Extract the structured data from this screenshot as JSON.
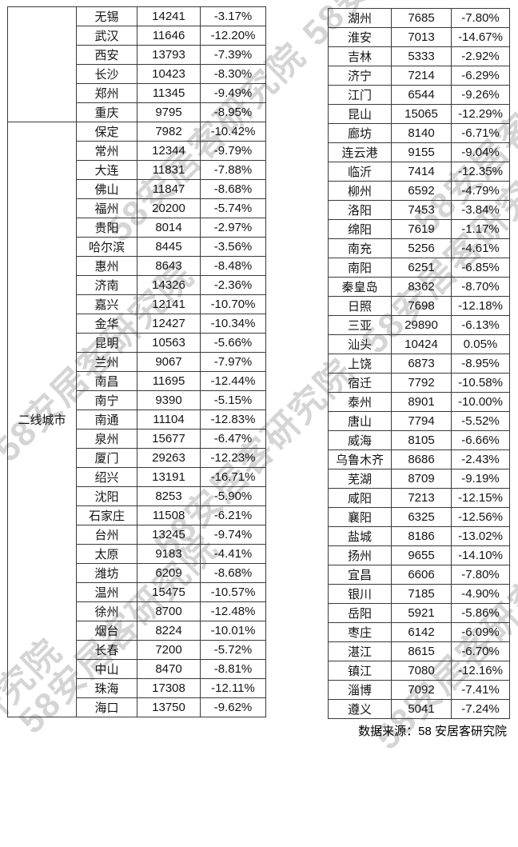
{
  "watermark": {
    "text": "58安居客研究院"
  },
  "footer": {
    "source_label": "数据来源：58 安居客研究院"
  },
  "table": {
    "left": {
      "groups": [
        {
          "label": "",
          "rows": [
            [
              "无锡",
              "14241",
              "-3.17%"
            ],
            [
              "武汉",
              "11646",
              "-12.20%"
            ],
            [
              "西安",
              "13793",
              "-7.39%"
            ],
            [
              "长沙",
              "10423",
              "-8.30%"
            ],
            [
              "郑州",
              "11345",
              "-9.49%"
            ],
            [
              "重庆",
              "9795",
              "-8.95%"
            ]
          ]
        },
        {
          "label": "二线城市",
          "rows": [
            [
              "保定",
              "7982",
              "-10.42%"
            ],
            [
              "常州",
              "12344",
              "-9.79%"
            ],
            [
              "大连",
              "11831",
              "-7.88%"
            ],
            [
              "佛山",
              "11847",
              "-8.68%"
            ],
            [
              "福州",
              "20200",
              "-5.74%"
            ],
            [
              "贵阳",
              "8014",
              "-2.97%"
            ],
            [
              "哈尔滨",
              "8445",
              "-3.56%"
            ],
            [
              "惠州",
              "8643",
              "-8.48%"
            ],
            [
              "济南",
              "14326",
              "-2.36%"
            ],
            [
              "嘉兴",
              "12141",
              "-10.70%"
            ],
            [
              "金华",
              "12427",
              "-10.34%"
            ],
            [
              "昆明",
              "10563",
              "-5.66%"
            ],
            [
              "兰州",
              "9067",
              "-7.97%"
            ],
            [
              "南昌",
              "11695",
              "-12.44%"
            ],
            [
              "南宁",
              "9390",
              "-5.15%"
            ],
            [
              "南通",
              "11104",
              "-12.83%"
            ],
            [
              "泉州",
              "15677",
              "-6.47%"
            ],
            [
              "厦门",
              "29263",
              "-12.23%"
            ],
            [
              "绍兴",
              "13191",
              "-16.71%"
            ],
            [
              "沈阳",
              "8253",
              "-5.90%"
            ],
            [
              "石家庄",
              "11508",
              "-6.21%"
            ],
            [
              "台州",
              "13245",
              "-9.74%"
            ],
            [
              "太原",
              "9183",
              "-4.41%"
            ],
            [
              "潍坊",
              "6209",
              "-8.68%"
            ],
            [
              "温州",
              "15475",
              "-10.57%"
            ],
            [
              "徐州",
              "8700",
              "-12.48%"
            ],
            [
              "烟台",
              "8224",
              "-10.01%"
            ],
            [
              "长春",
              "7200",
              "-5.72%"
            ],
            [
              "中山",
              "8470",
              "-8.81%"
            ],
            [
              "珠海",
              "17308",
              "-12.11%"
            ],
            [
              "海口",
              "13750",
              "-9.62%"
            ]
          ]
        }
      ]
    },
    "right": {
      "rows": [
        [
          "湖州",
          "7685",
          "-7.80%"
        ],
        [
          "淮安",
          "7013",
          "-14.67%"
        ],
        [
          "吉林",
          "5333",
          "-2.92%"
        ],
        [
          "济宁",
          "7214",
          "-6.29%"
        ],
        [
          "江门",
          "6544",
          "-9.26%"
        ],
        [
          "昆山",
          "15065",
          "-12.29%"
        ],
        [
          "廊坊",
          "8140",
          "-6.71%"
        ],
        [
          "连云港",
          "9155",
          "-9.04%"
        ],
        [
          "临沂",
          "7414",
          "-12.35%"
        ],
        [
          "柳州",
          "6592",
          "-4.79%"
        ],
        [
          "洛阳",
          "7453",
          "-3.84%"
        ],
        [
          "绵阳",
          "7619",
          "-1.17%"
        ],
        [
          "南充",
          "5256",
          "-4.61%"
        ],
        [
          "南阳",
          "6251",
          "-6.85%"
        ],
        [
          "秦皇岛",
          "8362",
          "-8.70%"
        ],
        [
          "日照",
          "7698",
          "-12.18%"
        ],
        [
          "三亚",
          "29890",
          "-6.13%"
        ],
        [
          "汕头",
          "10424",
          "0.05%"
        ],
        [
          "上饶",
          "6873",
          "-8.95%"
        ],
        [
          "宿迁",
          "7792",
          "-10.58%"
        ],
        [
          "泰州",
          "8901",
          "-10.00%"
        ],
        [
          "唐山",
          "7794",
          "-5.52%"
        ],
        [
          "威海",
          "8105",
          "-6.66%"
        ],
        [
          "乌鲁木齐",
          "8686",
          "-2.43%"
        ],
        [
          "芜湖",
          "8709",
          "-9.19%"
        ],
        [
          "咸阳",
          "7213",
          "-12.15%"
        ],
        [
          "襄阳",
          "6325",
          "-12.56%"
        ],
        [
          "盐城",
          "8186",
          "-13.02%"
        ],
        [
          "扬州",
          "9655",
          "-14.10%"
        ],
        [
          "宜昌",
          "6606",
          "-7.80%"
        ],
        [
          "银川",
          "7185",
          "-4.90%"
        ],
        [
          "岳阳",
          "5921",
          "-5.86%"
        ],
        [
          "枣庄",
          "6142",
          "-6.09%"
        ],
        [
          "湛江",
          "8615",
          "-6.70%"
        ],
        [
          "镇江",
          "7080",
          "-12.16%"
        ],
        [
          "淄博",
          "7092",
          "-7.41%"
        ],
        [
          "遵义",
          "5041",
          "-7.24%"
        ]
      ]
    }
  }
}
